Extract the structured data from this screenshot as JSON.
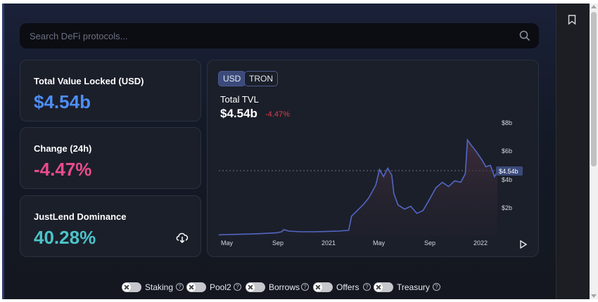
{
  "search": {
    "placeholder": "Search DeFi protocols..."
  },
  "stats": {
    "tvl_label": "Total Value Locked (USD)",
    "tvl_value": "$4.54b",
    "change_label": "Change (24h)",
    "change_value": "-4.47%",
    "dominance_label": "JustLend Dominance",
    "dominance_value": "40.28%"
  },
  "colors": {
    "tvl": "#4e8ef7",
    "change": "#e84c8a",
    "dominance": "#4cc3c9",
    "line": "#5367c5",
    "negative": "#e03a4a"
  },
  "chart_panel": {
    "toggle_usd": "USD",
    "toggle_tron": "TRON",
    "title": "Total TVL",
    "value": "$4.54b",
    "change": "-4.47%",
    "current_tag": "$4.54b"
  },
  "chart_data": {
    "type": "area",
    "x_ticks": [
      "May",
      "Sep",
      "2021",
      "May",
      "Sep",
      "2022"
    ],
    "y_ticks": [
      "$8b",
      "$6b",
      "$4b",
      "$2b"
    ],
    "ylim": [
      0,
      8
    ],
    "current_value": 4.54,
    "series": [
      {
        "points": [
          [
            "2020-03-15",
            0.08
          ],
          [
            "2020-04-01",
            0.1
          ],
          [
            "2020-05-01",
            0.12
          ],
          [
            "2020-06-01",
            0.14
          ],
          [
            "2020-07-01",
            0.18
          ],
          [
            "2020-08-01",
            0.22
          ],
          [
            "2020-08-15",
            0.3
          ],
          [
            "2020-08-20",
            0.45
          ],
          [
            "2020-09-01",
            0.35
          ],
          [
            "2020-10-01",
            0.3
          ],
          [
            "2020-11-01",
            0.3
          ],
          [
            "2020-12-01",
            0.32
          ],
          [
            "2021-01-01",
            0.35
          ],
          [
            "2021-01-25",
            0.4
          ],
          [
            "2021-02-01",
            1.4
          ],
          [
            "2021-02-15",
            1.8
          ],
          [
            "2021-03-01",
            2.2
          ],
          [
            "2021-03-15",
            2.7
          ],
          [
            "2021-04-01",
            3.6
          ],
          [
            "2021-04-10",
            4.7
          ],
          [
            "2021-04-20",
            4.2
          ],
          [
            "2021-04-30",
            4.8
          ],
          [
            "2021-05-10",
            4.3
          ],
          [
            "2021-05-15",
            3.0
          ],
          [
            "2021-05-25",
            2.2
          ],
          [
            "2021-06-10",
            1.9
          ],
          [
            "2021-06-25",
            2.1
          ],
          [
            "2021-07-10",
            1.6
          ],
          [
            "2021-07-25",
            1.8
          ],
          [
            "2021-08-10",
            2.6
          ],
          [
            "2021-08-25",
            3.4
          ],
          [
            "2021-09-10",
            3.8
          ],
          [
            "2021-09-25",
            3.5
          ],
          [
            "2021-10-10",
            3.9
          ],
          [
            "2021-10-25",
            3.8
          ],
          [
            "2021-11-05",
            4.4
          ],
          [
            "2021-11-10",
            6.8
          ],
          [
            "2021-11-20",
            6.4
          ],
          [
            "2021-12-01",
            6.0
          ],
          [
            "2021-12-15",
            5.4
          ],
          [
            "2021-12-25",
            4.9
          ],
          [
            "2022-01-05",
            5.0
          ],
          [
            "2022-01-15",
            4.2
          ],
          [
            "2022-01-22",
            4.54
          ]
        ]
      }
    ]
  },
  "toggles": [
    {
      "label": "Staking",
      "help": "?"
    },
    {
      "label": "Pool2",
      "help": "?"
    },
    {
      "label": "Borrows",
      "help": "?"
    },
    {
      "label": "Offers",
      "help": "?"
    },
    {
      "label": "Treasury",
      "help": "?"
    }
  ]
}
